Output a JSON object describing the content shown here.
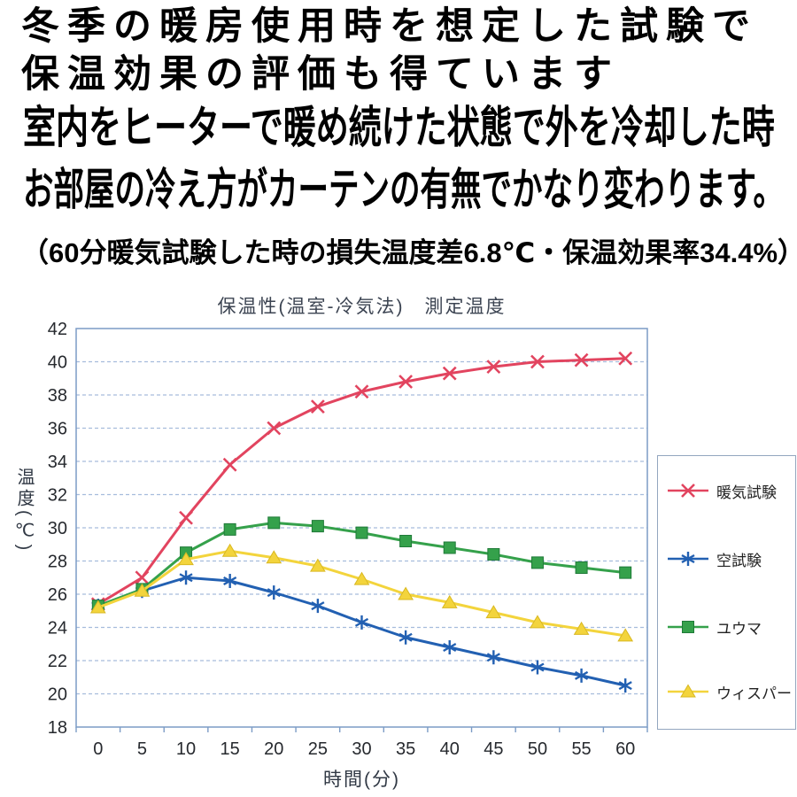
{
  "heading": {
    "line1": "冬季の暖房使用時を想定した試験で",
    "line2": "保温効果の評価も得ています",
    "line3": "室内をヒーターで暖め続けた状態で外を冷却した時",
    "line4": "お部屋の冷え方がカーテンの有無でかなり変わります。",
    "line5": "（60分暖気試験した時の損失温度差6.8℃・保温効果率34.4%）"
  },
  "chart_data": {
    "type": "line",
    "title": "保温性(温室-冷気法)　測定温度",
    "xlabel": "時間(分)",
    "ylabel": "温度(℃)",
    "x": [
      0,
      5,
      10,
      15,
      20,
      25,
      30,
      35,
      40,
      45,
      50,
      55,
      60
    ],
    "ylim": [
      18,
      42
    ],
    "ytick_step": 2,
    "grid": true,
    "legend_position": "right",
    "series": [
      {
        "name": "暖気試験",
        "color": "#e2445f",
        "marker": "x",
        "values": [
          25.4,
          27.0,
          30.6,
          33.8,
          36.0,
          37.3,
          38.2,
          38.8,
          39.3,
          39.7,
          40.0,
          40.1,
          40.2
        ]
      },
      {
        "name": "空試験",
        "color": "#2260b2",
        "marker": "asterisk",
        "values": [
          25.3,
          26.2,
          27.0,
          26.8,
          26.1,
          25.3,
          24.3,
          23.4,
          22.8,
          22.2,
          21.6,
          21.1,
          20.5
        ]
      },
      {
        "name": "ユウマ",
        "color": "#35a14b",
        "marker": "square",
        "values": [
          25.3,
          26.3,
          28.5,
          29.9,
          30.3,
          30.1,
          29.7,
          29.2,
          28.8,
          28.4,
          27.9,
          27.6,
          27.3
        ]
      },
      {
        "name": "ウィスパー",
        "color": "#f3d43c",
        "marker": "triangle",
        "values": [
          25.2,
          26.2,
          28.1,
          28.6,
          28.2,
          27.7,
          26.9,
          26.0,
          25.5,
          24.9,
          24.3,
          23.9,
          23.5
        ]
      }
    ]
  },
  "colors": {
    "grid": "#a6bcdc",
    "axis_border": "#7c9cc6",
    "tick_label": "#26292e",
    "legend_border": "#93a6bf"
  }
}
